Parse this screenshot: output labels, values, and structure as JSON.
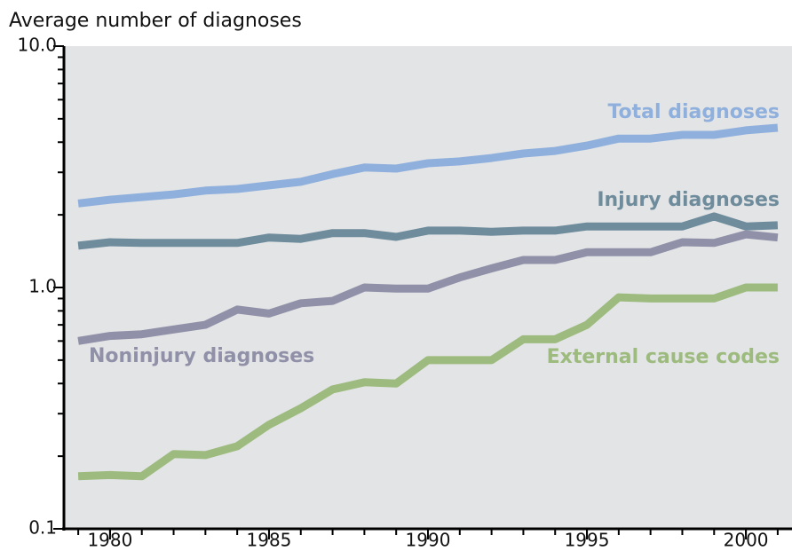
{
  "chart_data": {
    "type": "line",
    "title": "Average number of diagnoses",
    "log_y": true,
    "xlim": [
      1978.55,
      2001.45
    ],
    "xticks": [
      1980,
      1985,
      1990,
      1995,
      2000
    ],
    "xminorticks": [
      1979,
      1980,
      1981,
      1982,
      1983,
      1984,
      1985,
      1986,
      1987,
      1988,
      1989,
      1990,
      1991,
      1992,
      1993,
      1994,
      1995,
      1996,
      1997,
      1998,
      1999,
      2000,
      2001
    ],
    "ylim": [
      0.1,
      10
    ],
    "yticks": [
      {
        "value": 10,
        "label": "10.0"
      },
      {
        "value": 1,
        "label": "1.0"
      },
      0.1
    ],
    "yminorticks": [
      0.2,
      0.3,
      0.4,
      0.5,
      0.6,
      0.7,
      0.8,
      0.9,
      2,
      3,
      4,
      5,
      6,
      7,
      8,
      9
    ],
    "x": [
      1979,
      1980,
      1981,
      1982,
      1983,
      1984,
      1985,
      1986,
      1987,
      1988,
      1989,
      1990,
      1991,
      1992,
      1993,
      1994,
      1995,
      1996,
      1997,
      1998,
      1999,
      2000,
      2001
    ],
    "series": [
      {
        "name": "Total diagnoses",
        "color": "#8fb0dd",
        "values": [
          2.23,
          2.31,
          2.37,
          2.43,
          2.52,
          2.56,
          2.65,
          2.74,
          2.95,
          3.14,
          3.11,
          3.27,
          3.33,
          3.44,
          3.59,
          3.68,
          3.87,
          4.14,
          4.14,
          4.29,
          4.29,
          4.48,
          4.59
        ]
      },
      {
        "name": "Injury diagnoses",
        "color": "#6e8c9c",
        "values": [
          1.49,
          1.54,
          1.53,
          1.53,
          1.53,
          1.53,
          1.61,
          1.59,
          1.68,
          1.68,
          1.62,
          1.72,
          1.72,
          1.7,
          1.72,
          1.72,
          1.79,
          1.79,
          1.79,
          1.79,
          1.97,
          1.79,
          1.81
        ]
      },
      {
        "name": "Noninjury diagnoses",
        "color": "#9090a8",
        "values": [
          0.6,
          0.63,
          0.64,
          0.67,
          0.7,
          0.81,
          0.78,
          0.86,
          0.88,
          1.0,
          0.99,
          0.99,
          1.1,
          1.2,
          1.3,
          1.3,
          1.4,
          1.4,
          1.4,
          1.54,
          1.53,
          1.66,
          1.61
        ]
      },
      {
        "name": "External cause codes",
        "color": "#9dbb7e",
        "values": [
          0.165,
          0.167,
          0.165,
          0.204,
          0.202,
          0.22,
          0.27,
          0.316,
          0.378,
          0.405,
          0.4,
          0.5,
          0.5,
          0.5,
          0.61,
          0.61,
          0.7,
          0.91,
          0.9,
          0.9,
          0.9,
          1.0,
          1.0
        ]
      }
    ]
  }
}
